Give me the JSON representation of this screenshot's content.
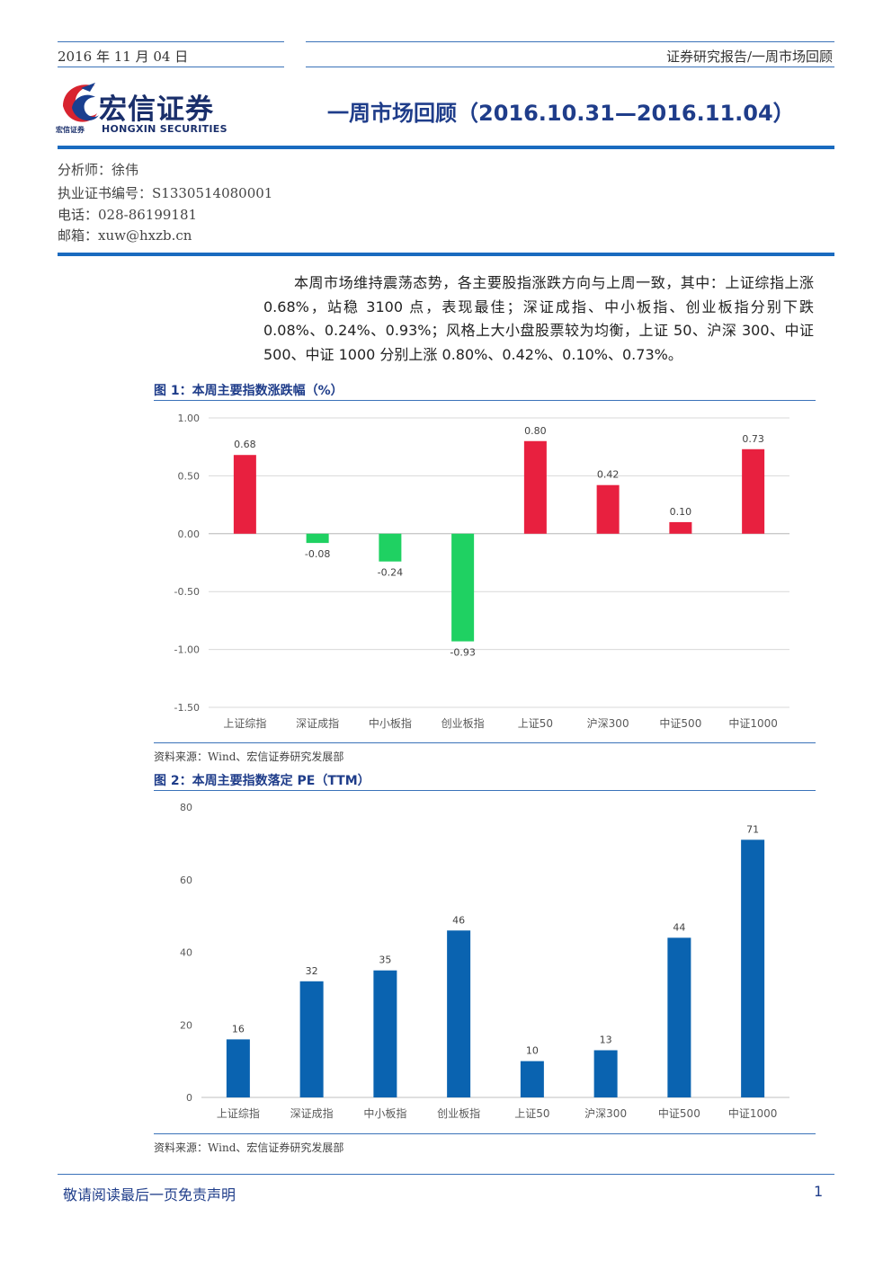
{
  "header": {
    "date": "2016 年 11 月 04 日",
    "category": "证券研究报告/一周市场回顾"
  },
  "logo": {
    "name_cn": "宏信证券",
    "name_en": "HONGXIN SECURITIES",
    "sub_cn": "宏信证券"
  },
  "title": "一周市场回顾（2016.10.31—2016.11.04）",
  "analyst": {
    "name": "分析师：徐伟",
    "license": "执业证书编号：S1330514080001",
    "phone": "电话：028-86199181",
    "email": "邮箱：xuw@hxzb.cn"
  },
  "summary": "本周市场维持震荡态势，各主要股指涨跌方向与上周一致，其中：上证综指上涨 0.68%，站稳 3100 点，表现最佳；深证成指、中小板指、创业板指分别下跌 0.08%、0.24%、0.93%；风格上大小盘股票较为均衡，上证 50、沪深 300、中证 500、中证 1000 分别上涨 0.80%、0.42%、0.10%、0.73%。",
  "chart_data": [
    {
      "type": "bar",
      "figure_label": "图 1：本周主要指数涨跌幅（%）",
      "categories": [
        "上证综指",
        "深证成指",
        "中小板指",
        "创业板指",
        "上证50",
        "沪深300",
        "中证500",
        "中证1000"
      ],
      "values": [
        0.68,
        -0.08,
        -0.24,
        -0.93,
        0.8,
        0.42,
        0.1,
        0.73
      ],
      "value_labels": [
        "0.68",
        "-0.08",
        "-0.24",
        "-0.93",
        "0.80",
        "0.42",
        "0.10",
        "0.73"
      ],
      "yticks": [
        "1.00",
        "0.50",
        "0.00",
        "-0.50",
        "-1.00",
        "-1.50"
      ],
      "ylim": [
        -1.5,
        1.0
      ],
      "grid": true,
      "positive_color": "#e8203f",
      "negative_color": "#1fd162",
      "source": "资料来源：Wind、宏信证券研究发展部"
    },
    {
      "type": "bar",
      "figure_label": "图 2：本周主要指数落定 PE（TTM）",
      "categories": [
        "上证综指",
        "深证成指",
        "中小板指",
        "创业板指",
        "上证50",
        "沪深300",
        "中证500",
        "中证1000"
      ],
      "values": [
        16,
        32,
        35,
        46,
        10,
        13,
        44,
        71
      ],
      "value_labels": [
        "16",
        "32",
        "35",
        "46",
        "10",
        "13",
        "44",
        "71"
      ],
      "yticks": [
        "80",
        "60",
        "40",
        "20",
        "0"
      ],
      "ylim": [
        0,
        80
      ],
      "grid": false,
      "bar_color": "#0a63b0",
      "source": "资料来源：Wind、宏信证券研究发展部"
    }
  ],
  "footer": {
    "disclaimer": "敬请阅读最后一页免责声明",
    "page": "1"
  }
}
